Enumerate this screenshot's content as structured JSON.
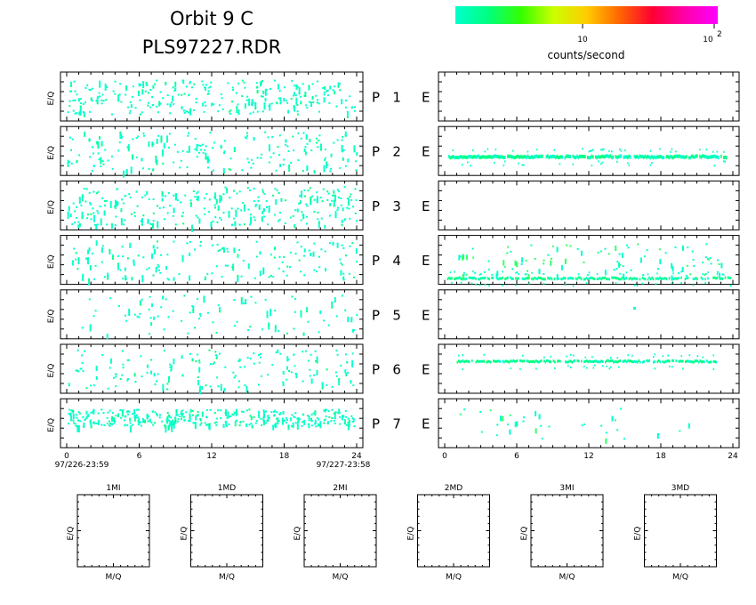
{
  "figure": {
    "title_line1": "Orbit 9 C",
    "title_line2": "PLS97227.RDR"
  },
  "colorbar": {
    "label": "counts/second",
    "tick_10": "10",
    "tick_100_base": "10",
    "tick_100_exp": "2",
    "colors": [
      "#00ffcc",
      "#00ff80",
      "#33ff00",
      "#ccff00",
      "#ffcc00",
      "#ff6600",
      "#ff0033",
      "#ff00aa",
      "#ff00ff"
    ]
  },
  "chart_data": [
    {
      "type": "heatmap",
      "name": "P channels (left column)",
      "ylabel": "E/Q",
      "x_range": [
        0,
        24
      ],
      "x_ticks": [
        "0",
        "6",
        "12",
        "18",
        "24"
      ],
      "x_start_label": "97/226-23:59",
      "x_end_label": "97/227-23:58",
      "rows": [
        {
          "label": "P 1",
          "density": 0.3,
          "band": [
            0.15,
            0.85
          ]
        },
        {
          "label": "P 2",
          "density": 0.22,
          "band": [
            0.1,
            0.9
          ]
        },
        {
          "label": "P 3",
          "density": 0.32,
          "band": [
            0.1,
            0.9
          ]
        },
        {
          "label": "P 4",
          "density": 0.18,
          "band": [
            0.1,
            0.9
          ]
        },
        {
          "label": "P 5",
          "density": 0.1,
          "band": [
            0.1,
            0.9
          ]
        },
        {
          "label": "P 6",
          "density": 0.18,
          "band": [
            0.1,
            0.9
          ]
        },
        {
          "label": "P 7",
          "density": 0.4,
          "band": [
            0.2,
            0.55
          ]
        }
      ]
    },
    {
      "type": "heatmap",
      "name": "E channels (right column)",
      "x_range": [
        0,
        24
      ],
      "x_ticks": [
        "0",
        "6",
        "12",
        "18",
        "24"
      ],
      "rows": [
        {
          "label": "E",
          "channel": 1,
          "features": []
        },
        {
          "label": "E",
          "channel": 2,
          "features": [
            {
              "kind": "band",
              "level": 0.62,
              "from": 0.3,
              "to": 23.5,
              "intensity": "high"
            }
          ]
        },
        {
          "label": "E",
          "channel": 3,
          "features": []
        },
        {
          "label": "E",
          "channel": 4,
          "features": [
            {
              "kind": "band",
              "level": 0.88,
              "from": 0.2,
              "to": 23.8,
              "intensity": "medium"
            },
            {
              "kind": "scatter",
              "from": 1.0,
              "to": 23.5,
              "density": 0.12
            }
          ]
        },
        {
          "label": "E",
          "channel": 5,
          "features": [
            {
              "kind": "point",
              "x": 15.7,
              "level": 0.35
            }
          ]
        },
        {
          "label": "E",
          "channel": 6,
          "features": [
            {
              "kind": "band",
              "level": 0.35,
              "from": 1.0,
              "to": 22.6,
              "intensity": "medium"
            }
          ]
        },
        {
          "label": "E",
          "channel": 7,
          "features": [
            {
              "kind": "scatter",
              "from": 1.0,
              "to": 21.0,
              "density": 0.04
            }
          ]
        }
      ]
    }
  ],
  "small_panels": [
    {
      "title": "1MI",
      "ylabel": "E/Q",
      "xlabel": "M/Q"
    },
    {
      "title": "1MD",
      "ylabel": "E/Q",
      "xlabel": "M/Q"
    },
    {
      "title": "2MI",
      "ylabel": "E/Q",
      "xlabel": "M/Q"
    },
    {
      "title": "2MD",
      "ylabel": "E/Q",
      "xlabel": "M/Q"
    },
    {
      "title": "3MI",
      "ylabel": "E/Q",
      "xlabel": "M/Q"
    },
    {
      "title": "3MD",
      "ylabel": "E/Q",
      "xlabel": "M/Q"
    }
  ]
}
